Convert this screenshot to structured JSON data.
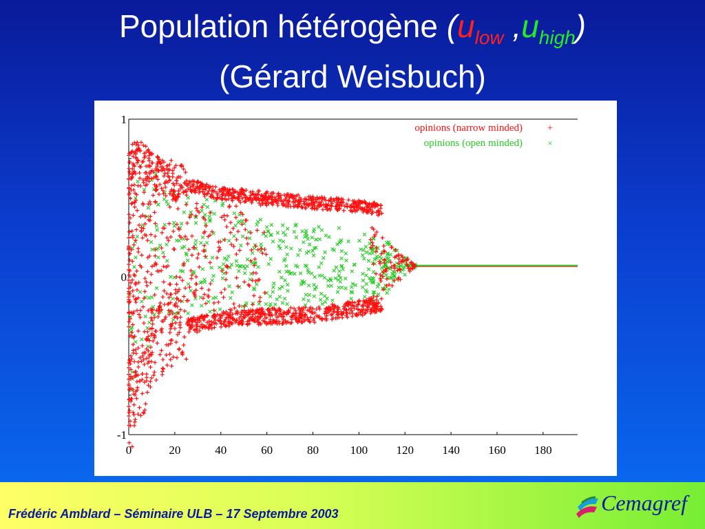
{
  "slide": {
    "title_main": "Population hétérogène",
    "title_open": "(",
    "u1": "u",
    "u1_sub": "low",
    "title_sep": " ,",
    "u2": "u",
    "u2_sub": "high",
    "title_close": ")",
    "title_line2": "(Gérard Weisbuch)"
  },
  "footer": {
    "text": "Frédéric Amblard – Séminaire ULB – 17 Septembre 2003",
    "logo_text": "Cemagref"
  },
  "colors": {
    "narrow": "#ff1010",
    "open": "#22cc22",
    "navy": "#0a1a9a"
  },
  "chart_data": {
    "type": "scatter",
    "xlim": [
      0,
      195
    ],
    "ylim": [
      -1,
      1
    ],
    "xticks": [
      "0",
      "20",
      "40",
      "60",
      "80",
      "100",
      "120",
      "140",
      "160",
      "180"
    ],
    "yticks": [
      "1",
      "0",
      "-1"
    ],
    "legend_position": "top-right",
    "series": [
      {
        "name": "opinions (narrow minded)",
        "marker": "+",
        "upper_band_y": [
          [
            0,
            0.78
          ],
          [
            20,
            0.6
          ],
          [
            40,
            0.53
          ],
          [
            60,
            0.5
          ],
          [
            80,
            0.47
          ],
          [
            100,
            0.45
          ],
          [
            108,
            0.43
          ]
        ],
        "lower_band_y": [
          [
            0,
            -0.95
          ],
          [
            10,
            -0.45
          ],
          [
            20,
            -0.33
          ],
          [
            40,
            -0.27
          ],
          [
            60,
            -0.25
          ],
          [
            80,
            -0.24
          ],
          [
            100,
            -0.2
          ],
          [
            108,
            -0.17
          ]
        ],
        "converged_y": 0.07,
        "convergence_x": 125
      },
      {
        "name": "opinions (open minded)",
        "marker": "x",
        "spread_y": [
          [
            0,
            0.75
          ],
          [
            60,
            0.35
          ],
          [
            100,
            0.3
          ],
          [
            112,
            0.15
          ]
        ],
        "converged_y": 0.07,
        "convergence_x": 125
      }
    ]
  }
}
